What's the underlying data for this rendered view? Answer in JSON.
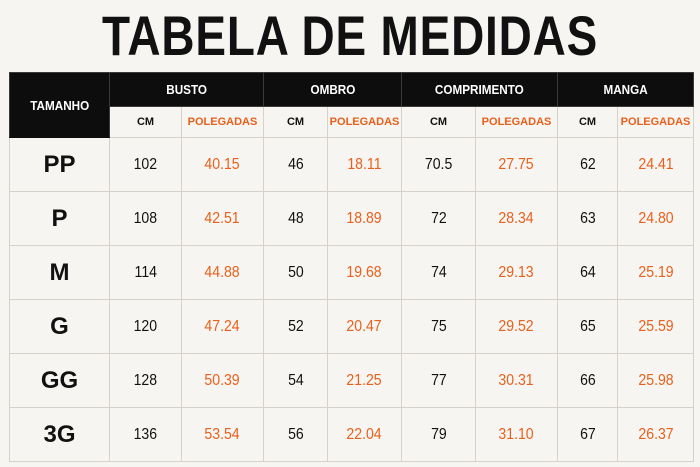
{
  "title": "TABELA DE MEDIDAS",
  "table": {
    "size_header": "TAMANHO",
    "groups": [
      "BUSTO",
      "OMBRO",
      "COMPRIMENTO",
      "MANGA"
    ],
    "units": {
      "cm": "CM",
      "pol": "POLEGADAS"
    },
    "rows": [
      {
        "size": "PP",
        "busto_cm": "102",
        "busto_pol": "40.15",
        "ombro_cm": "46",
        "ombro_pol": "18.11",
        "comp_cm": "70.5",
        "comp_pol": "27.75",
        "manga_cm": "62",
        "manga_pol": "24.41"
      },
      {
        "size": "P",
        "busto_cm": "108",
        "busto_pol": "42.51",
        "ombro_cm": "48",
        "ombro_pol": "18.89",
        "comp_cm": "72",
        "comp_pol": "28.34",
        "manga_cm": "63",
        "manga_pol": "24.80"
      },
      {
        "size": "M",
        "busto_cm": "114",
        "busto_pol": "44.88",
        "ombro_cm": "50",
        "ombro_pol": "19.68",
        "comp_cm": "74",
        "comp_pol": "29.13",
        "manga_cm": "64",
        "manga_pol": "25.19"
      },
      {
        "size": "G",
        "busto_cm": "120",
        "busto_pol": "47.24",
        "ombro_cm": "52",
        "ombro_pol": "20.47",
        "comp_cm": "75",
        "comp_pol": "29.52",
        "manga_cm": "65",
        "manga_pol": "25.59"
      },
      {
        "size": "GG",
        "busto_cm": "128",
        "busto_pol": "50.39",
        "ombro_cm": "54",
        "ombro_pol": "21.25",
        "comp_cm": "77",
        "comp_pol": "30.31",
        "manga_cm": "66",
        "manga_pol": "25.98"
      },
      {
        "size": "3G",
        "busto_cm": "136",
        "busto_pol": "53.54",
        "ombro_cm": "56",
        "ombro_pol": "22.04",
        "comp_cm": "79",
        "comp_pol": "31.10",
        "manga_cm": "67",
        "manga_pol": "26.37"
      }
    ]
  },
  "colors": {
    "header_bg": "#0d0d0d",
    "accent_orange": "#e8601c",
    "background": "#f7f5f1"
  }
}
